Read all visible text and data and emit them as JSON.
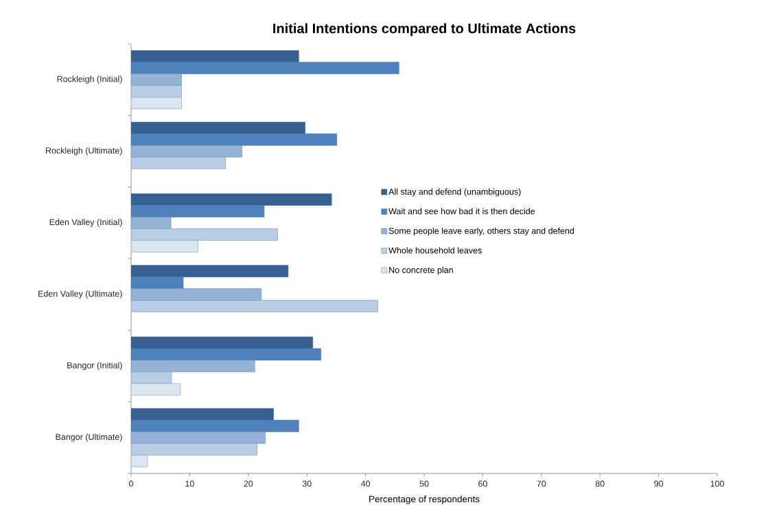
{
  "chart_data": {
    "type": "bar",
    "orientation": "horizontal",
    "title": "Initial Intentions compared to Ultimate Actions",
    "xlabel": "Percentage of respondents",
    "categories": [
      "Rockleigh (Initial)",
      "Rockleigh (Ultimate)",
      "Eden Valley (Initial)",
      "Eden Valley (Ultimate)",
      "Bangor (Initial)",
      "Bangor (Ultimate)"
    ],
    "series": [
      {
        "name": "All stay and defend (unambiguous)",
        "color": "#375f91",
        "values": [
          28.6,
          29.7,
          34.2,
          26.8,
          31.0,
          24.3
        ]
      },
      {
        "name": "Wait and see how bad it is then decide",
        "color": "#4f81bd",
        "values": [
          45.7,
          35.1,
          22.7,
          8.9,
          32.4,
          28.6
        ]
      },
      {
        "name": "Some people leave early, others stay and defend",
        "color": "#95b3d7",
        "values": [
          8.6,
          18.9,
          6.8,
          22.2,
          21.1,
          22.9
        ]
      },
      {
        "name": "Whole household leaves",
        "color": "#b9cde5",
        "values": [
          8.6,
          16.1,
          25.0,
          42.1,
          6.9,
          21.5
        ]
      },
      {
        "name": "No concrete plan",
        "color": "#dce6f2",
        "values": [
          8.6,
          null,
          11.4,
          null,
          8.4,
          2.8
        ]
      }
    ],
    "xlim": [
      0,
      100
    ],
    "xticks": [
      0,
      10,
      20,
      30,
      40,
      50,
      60,
      70,
      80,
      90,
      100
    ],
    "legend": "right"
  }
}
